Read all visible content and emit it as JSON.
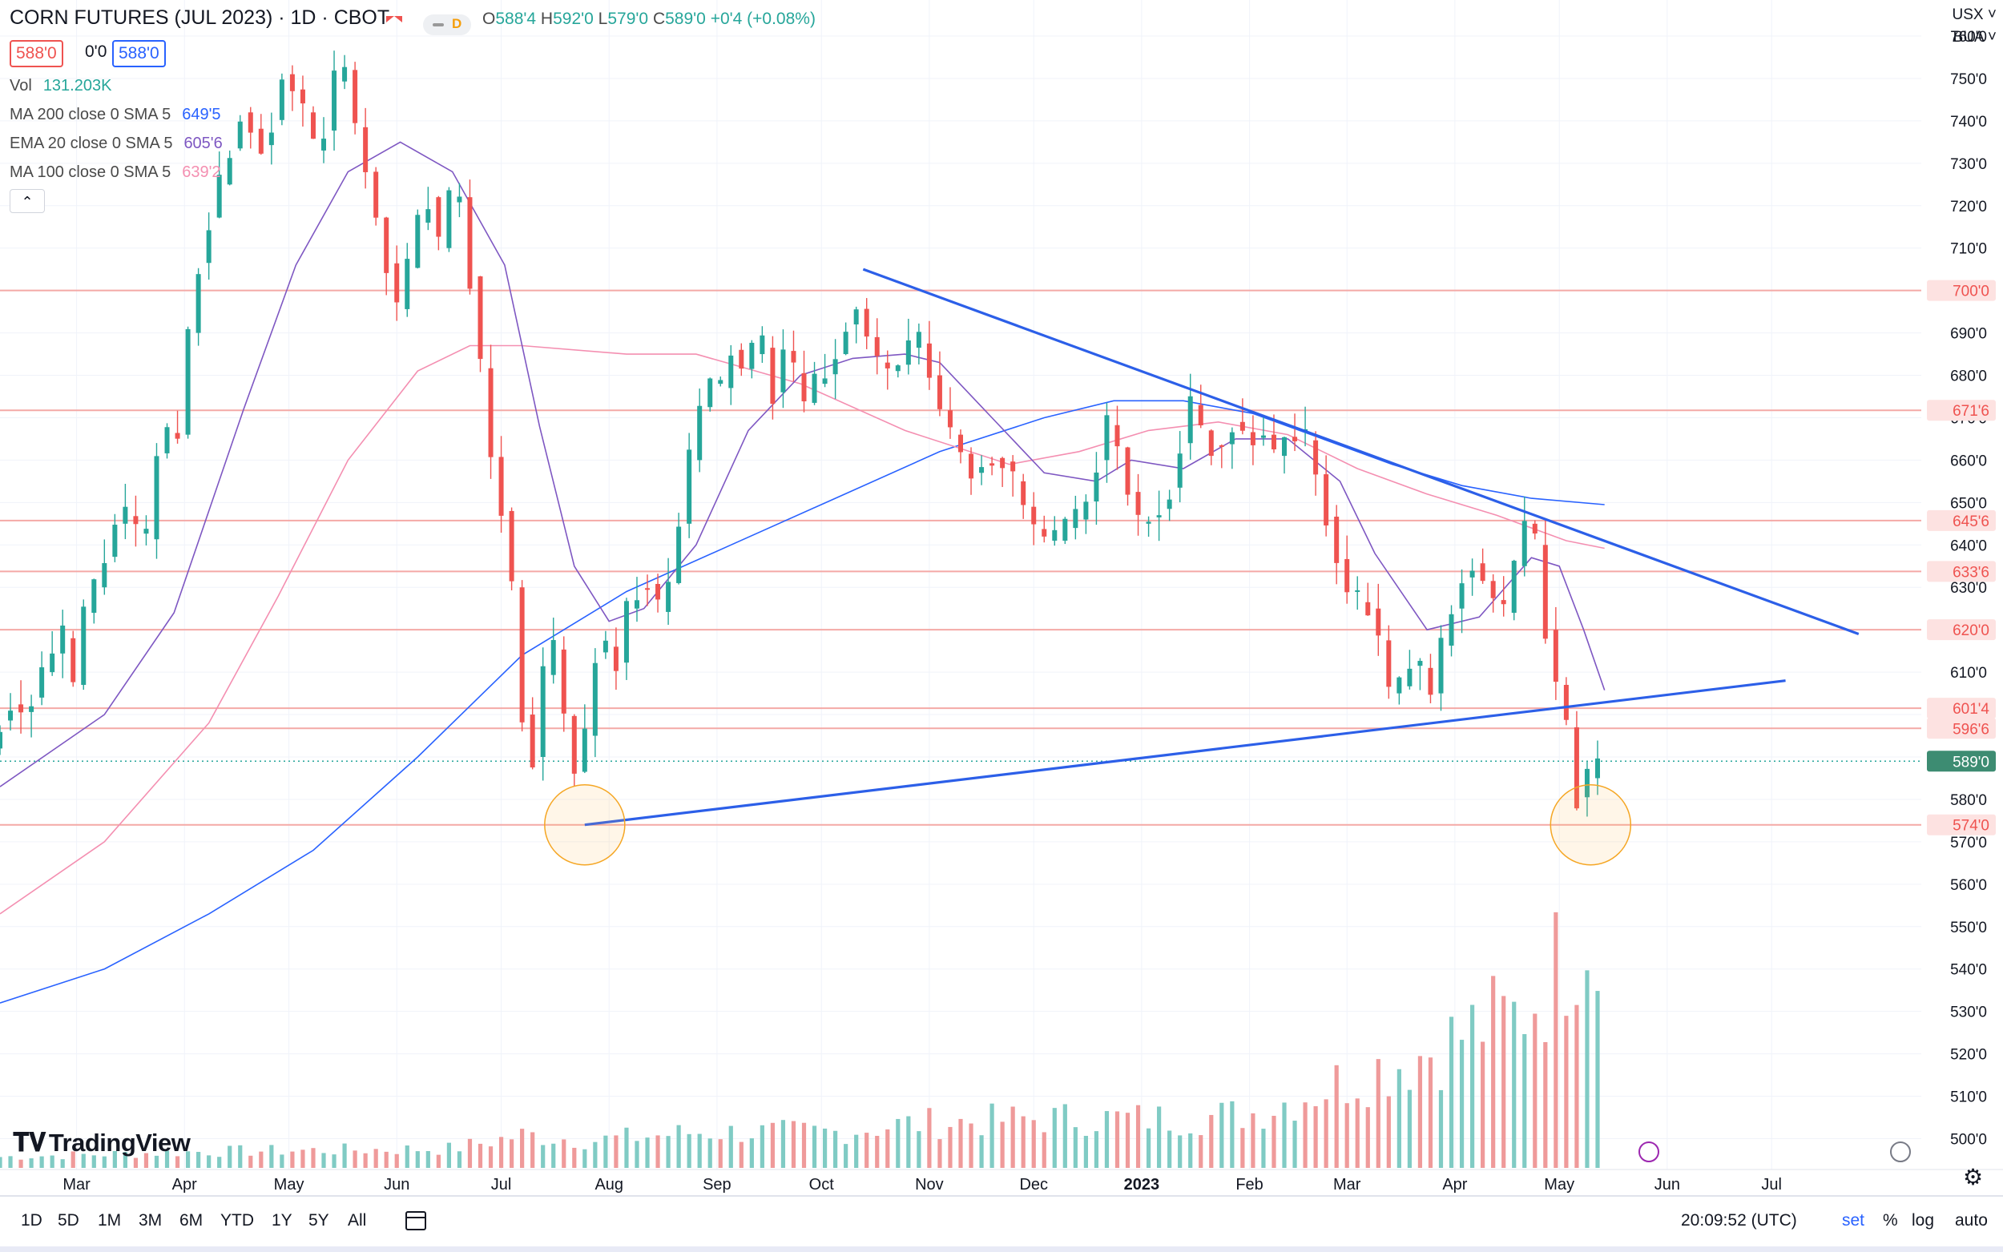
{
  "header": {
    "title": "CORN FUTURES (JUL 2023) · 1D · CBOT",
    "mode_letter": "D",
    "open_label": "O",
    "open": "588'4",
    "high_label": "H",
    "high": "592'0",
    "low_label": "L",
    "low": "579'0",
    "close_label": "C",
    "close": "589'0",
    "change": "+0'4 (+0.08%)",
    "bid": "588'0",
    "spread": "0'0",
    "ask": "588'0"
  },
  "indicators": [
    {
      "label": "Vol",
      "value": "131.203K",
      "color": "#26a69a"
    },
    {
      "label": "MA 200 close 0 SMA 5",
      "value": "649'5",
      "color": "#2962ff"
    },
    {
      "label": "EMA 20 close 0 SMA 5",
      "value": "605'6",
      "color": "#7e57c2"
    },
    {
      "label": "MA 100 close 0 SMA 5",
      "value": "639'2",
      "color": "#f48fb1"
    }
  ],
  "axis_top": {
    "currency": "USX",
    "unit": "BUA"
  },
  "branding": {
    "logo": "TradingView"
  },
  "bottom_bar": {
    "ranges": [
      "1D",
      "5D",
      "1M",
      "3M",
      "6M",
      "YTD",
      "1Y",
      "5Y",
      "All"
    ],
    "time": "20:09:52 (UTC)",
    "set": "set",
    "percent": "%",
    "log": "log",
    "auto": "auto"
  },
  "colors": {
    "up": "#26a69a",
    "down": "#ef5350",
    "ma200": "#2962ff",
    "ema20": "#7e57c2",
    "ma100": "#f48fb1",
    "trend": "#2c5fe8",
    "level": "#f4a9a6",
    "circle": "#f5a623"
  },
  "chart_data": {
    "type": "candlestick",
    "title": "CORN FUTURES (JUL 2023) · 1D · CBOT",
    "x_tick_labels": [
      "Mar",
      "Apr",
      "May",
      "Jun",
      "Jul",
      "Aug",
      "Sep",
      "Oct",
      "Nov",
      "Dec",
      "2023",
      "Feb",
      "Mar",
      "Apr",
      "May",
      "Jun",
      "Jul"
    ],
    "x_ticks_day": [
      22,
      53,
      83,
      114,
      144,
      175,
      206,
      236,
      267,
      297,
      328,
      359,
      387,
      418,
      448,
      479,
      509
    ],
    "x_range_day": [
      0,
      552
    ],
    "y_ticks": [
      "500'0",
      "510'0",
      "520'0",
      "530'0",
      "540'0",
      "550'0",
      "560'0",
      "570'0",
      "580'0",
      "590'0",
      "600'0",
      "610'0",
      "620'0",
      "630'0",
      "640'0",
      "650'0",
      "660'0",
      "670'0",
      "680'0",
      "690'0",
      "700'0",
      "710'0",
      "720'0",
      "730'0",
      "740'0",
      "750'0",
      "760'0"
    ],
    "y_range": [
      496.5,
      768.5
    ],
    "horizontal_levels": [
      {
        "price": 700.0,
        "label": "700'0"
      },
      {
        "price": 671.75,
        "label": "671'6"
      },
      {
        "price": 645.75,
        "label": "645'6"
      },
      {
        "price": 633.75,
        "label": "633'6"
      },
      {
        "price": 620.0,
        "label": "620'0"
      },
      {
        "price": 601.5,
        "label": "601'4"
      },
      {
        "price": 596.75,
        "label": "596'6"
      },
      {
        "price": 574.0,
        "label": "574'0"
      }
    ],
    "last_price": {
      "price": 589.0,
      "label": "589'0"
    },
    "trendlines": [
      {
        "name": "descending-resistance",
        "from": {
          "day": 248,
          "price": 705
        },
        "to": {
          "day": 534,
          "price": 619
        }
      },
      {
        "name": "ascending-support",
        "from": {
          "day": 168,
          "price": 574
        },
        "to": {
          "day": 513,
          "price": 608
        }
      }
    ],
    "highlight_circles": [
      {
        "day": 168,
        "price": 574
      },
      {
        "day": 457,
        "price": 574
      }
    ],
    "path_points": [
      [
        0,
        592
      ],
      [
        5,
        603
      ],
      [
        10,
        600
      ],
      [
        16,
        612
      ],
      [
        21,
        618
      ],
      [
        22,
        592
      ],
      [
        26,
        622
      ],
      [
        31,
        632
      ],
      [
        36,
        645
      ],
      [
        41,
        648
      ],
      [
        44,
        632
      ],
      [
        47,
        660
      ],
      [
        52,
        668
      ],
      [
        55,
        665
      ],
      [
        57,
        690
      ],
      [
        61,
        712
      ],
      [
        66,
        725
      ],
      [
        72,
        742
      ],
      [
        79,
        733
      ],
      [
        84,
        751
      ],
      [
        89,
        745
      ],
      [
        94,
        730
      ],
      [
        101,
        757
      ],
      [
        104,
        742
      ],
      [
        108,
        728
      ],
      [
        113,
        710
      ],
      [
        118,
        692
      ],
      [
        121,
        712
      ],
      [
        126,
        722
      ],
      [
        129,
        710
      ],
      [
        134,
        728
      ],
      [
        137,
        710
      ],
      [
        140,
        690
      ],
      [
        143,
        665
      ],
      [
        147,
        648
      ],
      [
        150,
        630
      ],
      [
        153,
        600
      ],
      [
        156,
        590
      ],
      [
        158,
        603
      ],
      [
        161,
        622
      ],
      [
        164,
        602
      ],
      [
        167,
        595
      ],
      [
        169,
        578
      ],
      [
        171,
        595
      ],
      [
        173,
        612
      ],
      [
        176,
        620
      ],
      [
        179,
        608
      ],
      [
        183,
        625
      ],
      [
        188,
        633
      ],
      [
        193,
        622
      ],
      [
        197,
        640
      ],
      [
        202,
        665
      ],
      [
        206,
        680
      ],
      [
        209,
        674
      ],
      [
        213,
        686
      ],
      [
        217,
        680
      ],
      [
        221,
        690
      ],
      [
        225,
        676
      ],
      [
        229,
        689
      ],
      [
        233,
        672
      ],
      [
        237,
        678
      ],
      [
        241,
        681
      ],
      [
        245,
        689
      ],
      [
        248,
        698
      ],
      [
        251,
        691
      ],
      [
        255,
        683
      ],
      [
        258,
        681
      ],
      [
        262,
        683
      ],
      [
        266,
        690
      ],
      [
        270,
        680
      ],
      [
        274,
        669
      ],
      [
        278,
        663
      ],
      [
        282,
        657
      ],
      [
        286,
        660
      ],
      [
        290,
        661
      ],
      [
        293,
        657
      ],
      [
        297,
        649
      ],
      [
        301,
        642
      ],
      [
        305,
        640
      ],
      [
        310,
        645
      ],
      [
        314,
        647
      ],
      [
        318,
        660
      ],
      [
        322,
        671
      ],
      [
        326,
        655
      ],
      [
        330,
        645
      ],
      [
        334,
        647
      ],
      [
        338,
        650
      ],
      [
        342,
        664
      ],
      [
        345,
        673
      ],
      [
        349,
        665
      ],
      [
        353,
        662
      ],
      [
        357,
        669
      ],
      [
        362,
        665
      ],
      [
        366,
        666
      ],
      [
        369,
        661
      ],
      [
        373,
        667
      ],
      [
        377,
        667
      ],
      [
        380,
        660
      ],
      [
        383,
        650
      ],
      [
        386,
        640
      ],
      [
        389,
        630
      ],
      [
        392,
        627
      ],
      [
        396,
        625
      ],
      [
        400,
        615
      ],
      [
        403,
        600
      ],
      [
        406,
        610
      ],
      [
        410,
        613
      ],
      [
        414,
        605
      ],
      [
        418,
        620
      ],
      [
        422,
        630
      ],
      [
        425,
        637
      ],
      [
        428,
        633
      ],
      [
        432,
        627
      ],
      [
        435,
        624
      ],
      [
        438,
        635
      ],
      [
        441,
        645
      ],
      [
        444,
        640
      ],
      [
        447,
        620
      ],
      [
        450,
        607
      ],
      [
        452,
        602
      ],
      [
        453,
        597
      ],
      [
        455,
        580
      ],
      [
        457,
        581
      ],
      [
        459,
        585
      ],
      [
        461,
        589
      ]
    ],
    "ma200_points": [
      [
        0,
        532
      ],
      [
        30,
        540
      ],
      [
        60,
        553
      ],
      [
        90,
        568
      ],
      [
        120,
        590
      ],
      [
        150,
        614
      ],
      [
        180,
        629
      ],
      [
        210,
        640
      ],
      [
        240,
        651
      ],
      [
        270,
        662
      ],
      [
        300,
        670
      ],
      [
        320,
        674
      ],
      [
        340,
        674
      ],
      [
        360,
        671
      ],
      [
        380,
        665
      ],
      [
        400,
        659
      ],
      [
        420,
        654
      ],
      [
        440,
        651
      ],
      [
        461,
        649.5
      ]
    ],
    "ma100_points": [
      [
        0,
        553
      ],
      [
        30,
        570
      ],
      [
        60,
        598
      ],
      [
        80,
        628
      ],
      [
        100,
        660
      ],
      [
        120,
        681
      ],
      [
        135,
        687
      ],
      [
        150,
        687
      ],
      [
        180,
        685
      ],
      [
        200,
        685
      ],
      [
        230,
        678
      ],
      [
        260,
        667
      ],
      [
        290,
        659
      ],
      [
        310,
        662
      ],
      [
        330,
        667
      ],
      [
        350,
        669
      ],
      [
        370,
        666
      ],
      [
        390,
        658
      ],
      [
        410,
        652
      ],
      [
        430,
        647
      ],
      [
        450,
        641
      ],
      [
        461,
        639.2
      ]
    ],
    "ema20_points": [
      [
        0,
        583
      ],
      [
        30,
        600
      ],
      [
        50,
        624
      ],
      [
        70,
        672
      ],
      [
        85,
        706
      ],
      [
        100,
        728
      ],
      [
        115,
        735
      ],
      [
        130,
        728
      ],
      [
        145,
        706
      ],
      [
        155,
        668
      ],
      [
        165,
        635
      ],
      [
        175,
        622
      ],
      [
        185,
        625
      ],
      [
        200,
        640
      ],
      [
        215,
        667
      ],
      [
        230,
        680
      ],
      [
        245,
        684
      ],
      [
        260,
        685
      ],
      [
        270,
        683
      ],
      [
        285,
        670
      ],
      [
        300,
        657
      ],
      [
        315,
        655
      ],
      [
        325,
        660
      ],
      [
        340,
        658
      ],
      [
        355,
        665
      ],
      [
        370,
        665
      ],
      [
        385,
        655
      ],
      [
        395,
        638
      ],
      [
        410,
        620
      ],
      [
        425,
        623
      ],
      [
        440,
        637
      ],
      [
        448,
        635
      ],
      [
        455,
        620
      ],
      [
        461,
        605.75
      ]
    ],
    "volume_profile": [
      [
        0,
        4
      ],
      [
        60,
        6
      ],
      [
        130,
        7
      ],
      [
        150,
        12
      ],
      [
        170,
        10
      ],
      [
        200,
        13
      ],
      [
        240,
        13
      ],
      [
        260,
        16
      ],
      [
        280,
        17
      ],
      [
        300,
        18
      ],
      [
        320,
        18
      ],
      [
        340,
        18
      ],
      [
        360,
        20
      ],
      [
        380,
        29
      ],
      [
        395,
        36
      ],
      [
        405,
        40
      ],
      [
        415,
        45
      ],
      [
        425,
        52
      ],
      [
        435,
        55
      ],
      [
        445,
        68
      ],
      [
        452,
        85
      ],
      [
        457,
        96
      ],
      [
        461,
        55
      ]
    ],
    "volume_y_max": 100
  }
}
